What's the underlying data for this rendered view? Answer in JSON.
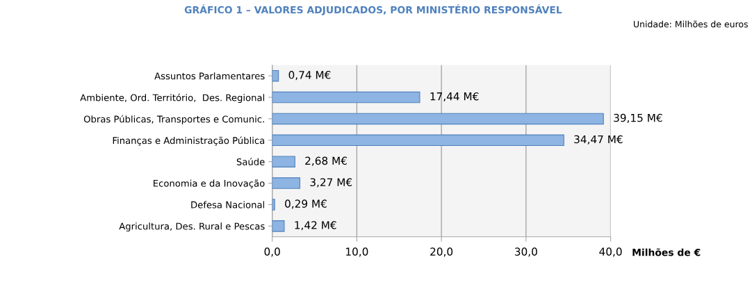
{
  "chart_data": {
    "type": "bar",
    "orientation": "horizontal",
    "title": "GRÁFICO 1 – VALORES ADJUDICADOS, POR MINISTÉRIO RESPONSÁVEL",
    "subtitle": "Unidade: Milhões de euros",
    "xlabel": "Milhões de €",
    "categories": [
      "Assuntos Parlamentares",
      "Ambiente, Ord. Território,  Des. Regional",
      "Obras Públicas, Transportes e Comunic.",
      "Finanças e Administração Pública",
      "Saúde",
      "Economia e da Inovação",
      "Defesa Nacional",
      "Agricultura, Des. Rural e Pescas"
    ],
    "values": [
      0.74,
      17.44,
      39.15,
      34.47,
      2.68,
      3.27,
      0.29,
      1.42
    ],
    "value_labels": [
      "0,74 M€",
      "17,44 M€",
      "39,15 M€",
      "34,47 M€",
      "2,68 M€",
      "3,27 M€",
      "0,29 M€",
      "1,42 M€"
    ],
    "color": "#8db4e2",
    "xlim": [
      0,
      40
    ],
    "xticks": [
      {
        "value": 0,
        "label": "0,0"
      },
      {
        "value": 10,
        "label": "10,0"
      },
      {
        "value": 20,
        "label": "20,0"
      },
      {
        "value": 30,
        "label": "30,0"
      },
      {
        "value": 40,
        "label": "40,0"
      }
    ],
    "grid": "x"
  }
}
